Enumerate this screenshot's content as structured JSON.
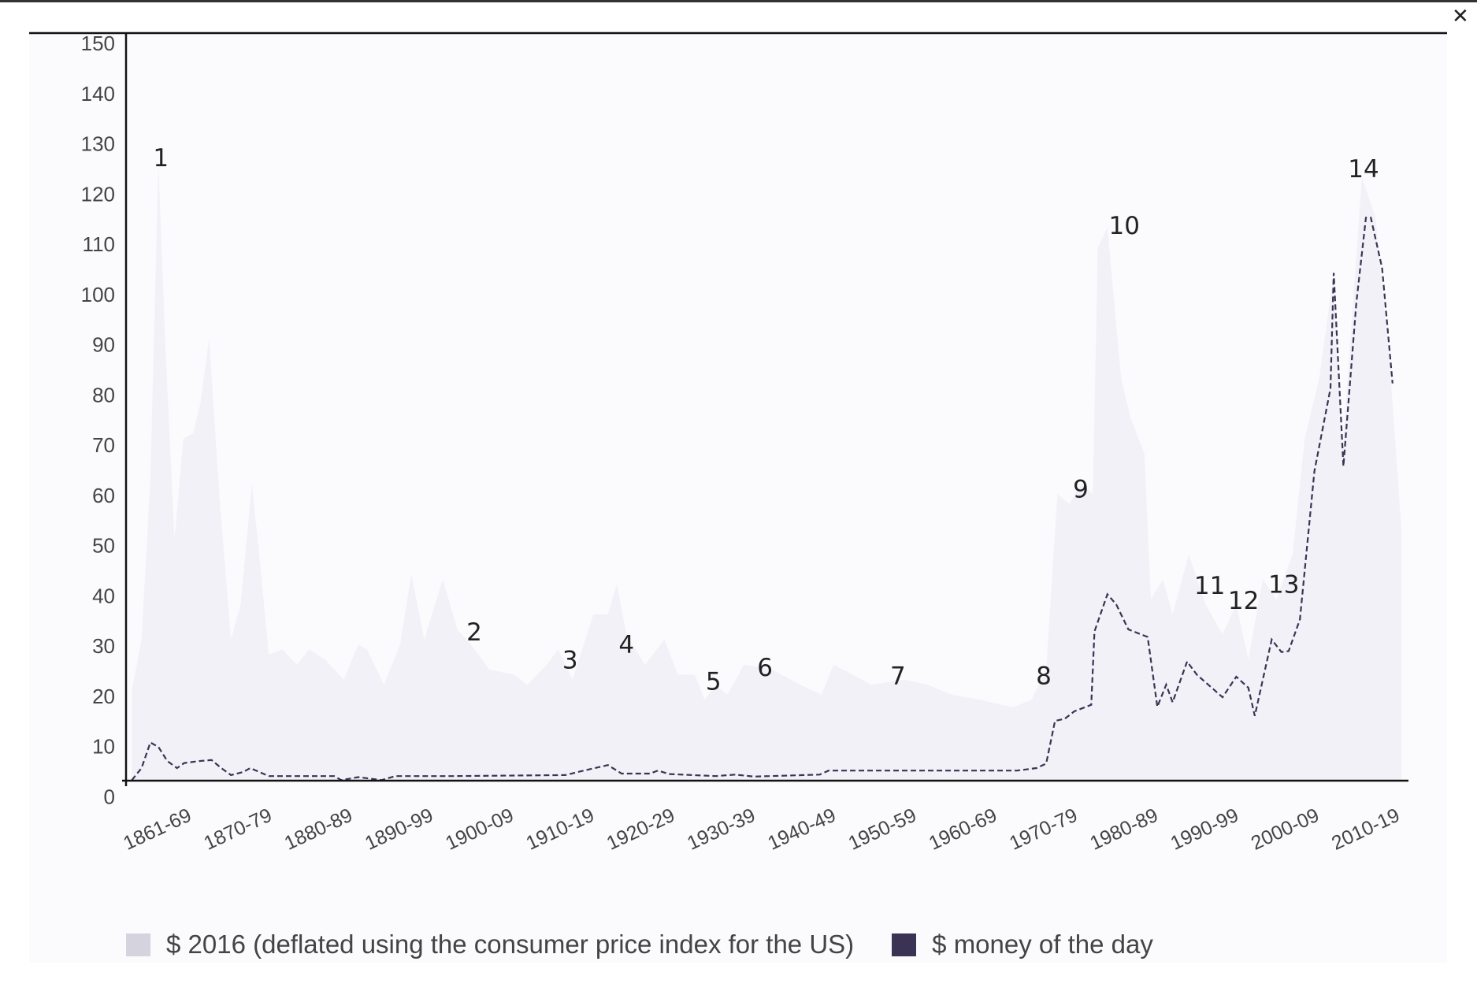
{
  "window": {
    "close_icon": "close-icon"
  },
  "colors": {
    "real_fill": "#f2f1f8",
    "real_swatch": "#d4d3de",
    "nominal": "#3b3354",
    "axis": "#111111",
    "text": "#444444"
  },
  "chart_data": {
    "type": "area",
    "title": "",
    "xlabel": "",
    "ylabel": "",
    "ylim": [
      0,
      150
    ],
    "xlim": [
      1861,
      2019
    ],
    "yticks": [
      0,
      10,
      20,
      30,
      40,
      50,
      60,
      70,
      80,
      90,
      100,
      110,
      120,
      130,
      140,
      150
    ],
    "ytick_labels": [
      "0",
      "10",
      "20",
      "30",
      "40",
      "50",
      "60",
      "70",
      "80",
      "90",
      "100",
      "110",
      "120",
      "130",
      "140",
      "150"
    ],
    "categories": [
      "1861-69",
      "1870-79",
      "1880-89",
      "1890-99",
      "1900-09",
      "1910-19",
      "1920-29",
      "1930-39",
      "1940-49",
      "1950-59",
      "1960-69",
      "1970-79",
      "1980-89",
      "1990-99",
      "2000-09",
      "2010-19"
    ],
    "category_starts": [
      1860,
      1870,
      1880,
      1890,
      1900,
      1910,
      1920,
      1930,
      1940,
      1950,
      1960,
      1970,
      1980,
      1990,
      2000,
      2010
    ],
    "grid": false,
    "legend_position": "bottom",
    "series": [
      {
        "name": "$ 2016 (deflated using the consumer price index for the US)",
        "style": "area",
        "x": [
          1861,
          1862.2,
          1863.3,
          1864.3,
          1865.2,
          1866.3,
          1867.4,
          1868.6,
          1869.5,
          1870.6,
          1871.8,
          1873.3,
          1874.5,
          1875.9,
          1876.8,
          1878,
          1879.7,
          1881.5,
          1883,
          1885,
          1887.3,
          1889.1,
          1890.2,
          1892.3,
          1894.3,
          1895.7,
          1897.3,
          1899.6,
          1901.4,
          1903.1,
          1905.4,
          1908.4,
          1910.1,
          1912.5,
          1913.9,
          1915.7,
          1918.3,
          1920.1,
          1921.2,
          1922.4,
          1924.7,
          1927.1,
          1928.8,
          1930.9,
          1932.1,
          1933.5,
          1934.9,
          1937,
          1940.5,
          1944,
          1946.6,
          1948.1,
          1950.5,
          1952.8,
          1956.9,
          1959.8,
          1962.8,
          1966.3,
          1970.4,
          1972.7,
          1974.5,
          1975.9,
          1977.4,
          1978.9,
          1980.3,
          1980.9,
          1982.1,
          1983.8,
          1985,
          1986.7,
          1987.5,
          1989,
          1990.2,
          1992.2,
          1994.3,
          1996.4,
          1998.1,
          1999.6,
          2001.4,
          2003.1,
          2005.1,
          2006.6,
          2008.4,
          2010.1,
          2011.3,
          2013.7,
          2015.4,
          2017.2,
          2018.6
        ],
        "values": [
          18,
          28,
          60,
          123,
          85,
          48,
          68,
          69,
          75,
          88,
          58,
          28,
          35,
          59,
          45,
          25,
          26,
          23,
          26,
          24,
          20,
          27,
          26,
          19,
          27,
          41,
          28,
          40,
          30,
          27,
          22,
          21,
          19,
          23,
          26,
          20,
          33,
          33,
          39,
          29,
          23,
          28,
          21,
          21,
          16,
          19,
          17,
          23,
          22,
          19,
          17,
          23,
          21,
          19,
          20,
          19,
          17,
          16,
          14.5,
          16,
          22,
          57,
          55,
          59,
          57,
          106,
          110,
          80,
          72,
          65,
          36,
          40,
          33,
          45,
          35,
          29,
          35,
          24,
          40,
          36,
          45,
          68,
          80,
          100,
          66,
          120,
          112,
          82,
          50
        ]
      },
      {
        "name": "$ money of the day",
        "style": "dashed-line",
        "x": [
          1861,
          1862.2,
          1863.3,
          1864.3,
          1865.4,
          1866.6,
          1867.5,
          1869.4,
          1870.9,
          1872.1,
          1873.3,
          1874.8,
          1875.7,
          1878,
          1886.1,
          1887,
          1889.1,
          1892,
          1893.7,
          1900.8,
          1914.8,
          1917.1,
          1920.1,
          1921.8,
          1925.3,
          1926.3,
          1927.7,
          1933.5,
          1935.9,
          1938.2,
          1946.4,
          1947.5,
          1970.9,
          1973.3,
          1974.5,
          1975.6,
          1976.8,
          1978,
          1980.1,
          1980.5,
          1982.1,
          1983.2,
          1984.7,
          1987.1,
          1988.3,
          1989.4,
          1990.2,
          1992,
          1993.2,
          1996.4,
          1998.1,
          1999.6,
          2000.4,
          2002.5,
          2003.7,
          2004.6,
          2006,
          2007.8,
          2009.8,
          2010.2,
          2011.4,
          2013,
          2014.2,
          2014.8,
          2016.2,
          2017.5
        ],
        "values": [
          0,
          2.4,
          7.5,
          6.6,
          3.8,
          2.4,
          3.4,
          3.8,
          4,
          2.4,
          1,
          1.6,
          2.4,
          0.8,
          0.8,
          0,
          0.6,
          0,
          0.8,
          0.8,
          1,
          1.9,
          3,
          1.3,
          1.3,
          1.9,
          1.2,
          0.8,
          1.1,
          0.7,
          1.1,
          1.9,
          1.9,
          2.4,
          3.3,
          11.8,
          12.2,
          13.7,
          15,
          29.6,
          37,
          35,
          30,
          28.5,
          14.6,
          19,
          15.5,
          23.6,
          21,
          16.5,
          20.6,
          18.4,
          12.8,
          28,
          25.5,
          25.7,
          32,
          61.5,
          78,
          101,
          62.5,
          95,
          112,
          112,
          102,
          79
        ]
      }
    ],
    "annotations": [
      {
        "text": "1",
        "x": 1864.6,
        "y": 124
      },
      {
        "text": "2",
        "x": 1903.5,
        "y": 29.5
      },
      {
        "text": "3",
        "x": 1915.4,
        "y": 24
      },
      {
        "text": "4",
        "x": 1922.4,
        "y": 27
      },
      {
        "text": "5",
        "x": 1933.2,
        "y": 19.7
      },
      {
        "text": "6",
        "x": 1939.6,
        "y": 22.5
      },
      {
        "text": "7",
        "x": 1956.1,
        "y": 20.8
      },
      {
        "text": "8",
        "x": 1974.2,
        "y": 20.8
      },
      {
        "text": "9",
        "x": 1978.8,
        "y": 58
      },
      {
        "text": "10",
        "x": 1984.2,
        "y": 110.5
      },
      {
        "text": "11",
        "x": 1994.8,
        "y": 38.8
      },
      {
        "text": "12",
        "x": 1999,
        "y": 35.8
      },
      {
        "text": "13",
        "x": 2004,
        "y": 39
      },
      {
        "text": "14",
        "x": 2013.9,
        "y": 121.8
      }
    ]
  }
}
